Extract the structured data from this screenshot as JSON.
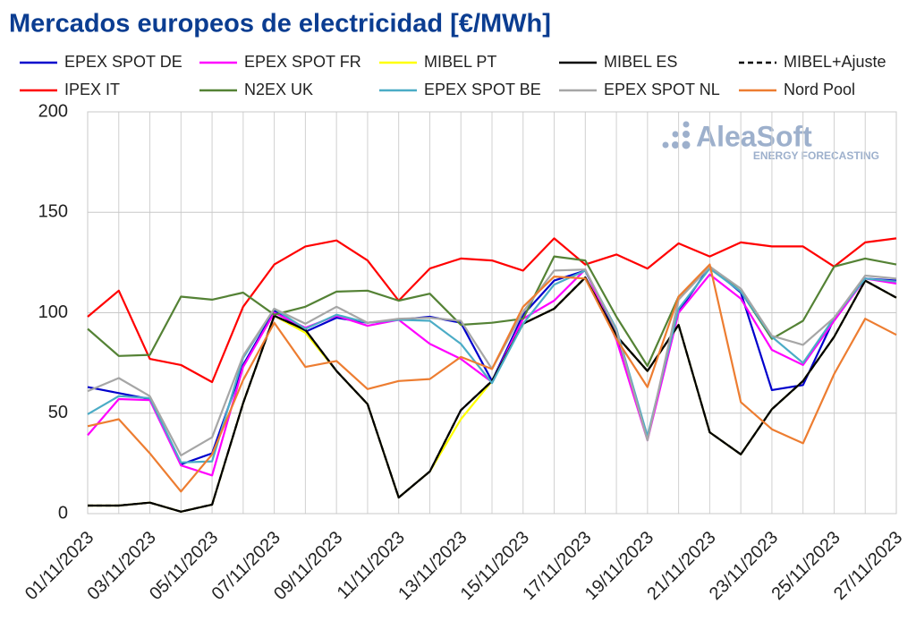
{
  "chart_data": {
    "type": "line",
    "title": "Mercados europeos de electricidad [€/MWh]",
    "watermark": {
      "name": "AleaSoft",
      "tagline": "ENERGY FORECASTING"
    },
    "categories": [
      "01/11/2023",
      null,
      "03/11/2023",
      null,
      "05/11/2023",
      null,
      "07/11/2023",
      null,
      "09/11/2023",
      null,
      "11/11/2023",
      null,
      "13/11/2023",
      null,
      "15/11/2023",
      null,
      "17/11/2023",
      null,
      "19/11/2023",
      null,
      "21/11/2023",
      null,
      "23/11/2023",
      null,
      "25/11/2023",
      null,
      "27/11/2023"
    ],
    "ylim": [
      0,
      200
    ],
    "yticks": [
      0,
      50,
      100,
      150,
      200
    ],
    "grid": true,
    "series": [
      {
        "name": "EPEX SPOT DE",
        "color": "#0000cc",
        "values": [
          63,
          60,
          57,
          24.5,
          30,
          74,
          101,
          90.5,
          97.5,
          95,
          96.5,
          98,
          95,
          66,
          99,
          116,
          121,
          89,
          37,
          100.5,
          123,
          110,
          61.5,
          64,
          97,
          117,
          116
        ]
      },
      {
        "name": "EPEX SPOT FR",
        "color": "#ff00ff",
        "values": [
          39,
          57,
          56.5,
          24,
          19,
          73,
          100,
          92.5,
          98.5,
          93.5,
          96.5,
          84.5,
          77,
          65.5,
          97,
          106,
          121.5,
          86.5,
          36.5,
          100,
          119,
          107,
          81.5,
          74,
          96,
          117,
          114.5
        ]
      },
      {
        "name": "MIBEL PT",
        "color": "#ffff00",
        "values": [
          4,
          4,
          5.5,
          1,
          4.5,
          55,
          98.5,
          90,
          71,
          54.5,
          8,
          21,
          47,
          66,
          94.5,
          102,
          117.5,
          88.5,
          71,
          94,
          40.5,
          29.5,
          52,
          66,
          88,
          116,
          107.5
        ]
      },
      {
        "name": "MIBEL ES",
        "color": "#000000",
        "values": [
          4,
          4,
          5.5,
          1,
          4.5,
          55,
          98.5,
          91.5,
          71,
          54.5,
          8,
          21,
          51.5,
          66,
          94.5,
          102,
          117.5,
          88.5,
          71,
          94,
          40.5,
          29.5,
          52,
          66,
          88,
          116,
          107.5
        ]
      },
      {
        "name": "MIBEL+Ajuste",
        "color": "#000000",
        "dashed": true,
        "values": [
          4,
          4,
          5.5,
          1,
          4.5,
          55,
          98.5,
          91.5,
          71,
          54.5,
          8,
          21,
          51.5,
          66,
          94.5,
          102,
          117.5,
          88.5,
          71,
          94,
          40.5,
          29.5,
          52,
          66,
          88,
          116,
          107.5
        ]
      },
      {
        "name": "IPEX IT",
        "color": "#ff0000",
        "values": [
          98,
          111,
          77,
          74,
          65.5,
          103,
          124,
          133,
          136,
          126,
          106,
          122,
          127,
          126,
          121,
          137,
          124,
          129,
          122,
          134.5,
          128,
          135,
          133,
          133,
          123,
          135,
          137
        ]
      },
      {
        "name": "N2EX UK",
        "color": "#548235",
        "values": [
          92,
          78.5,
          79,
          108,
          106.5,
          110,
          99,
          103,
          110.5,
          111,
          106,
          109.5,
          94,
          95,
          97,
          128,
          126,
          98,
          73.5,
          108,
          123,
          110.5,
          87,
          96,
          123,
          127,
          124
        ]
      },
      {
        "name": "EPEX SPOT BE",
        "color": "#4bacc6",
        "values": [
          49.5,
          58.5,
          57.5,
          25.5,
          26,
          77.5,
          102,
          92,
          99,
          95,
          96.5,
          96,
          84.5,
          65,
          94.5,
          114,
          121,
          92,
          38.5,
          102,
          122,
          110.5,
          88,
          75,
          97.5,
          117,
          115.5
        ]
      },
      {
        "name": "EPEX SPOT NL",
        "color": "#a6a6a6",
        "values": [
          61,
          67.5,
          58.5,
          29,
          38,
          78.5,
          102,
          94.5,
          103,
          95,
          97,
          97.5,
          96,
          72,
          100.5,
          121,
          121.5,
          91,
          36.5,
          106.5,
          123,
          112,
          88.5,
          84,
          97.5,
          118.5,
          117
        ]
      },
      {
        "name": "Nord Pool",
        "color": "#ed7d31",
        "values": [
          43.5,
          47,
          30,
          11,
          29.5,
          66.5,
          95,
          73,
          76,
          62,
          66,
          67,
          78,
          72,
          103,
          118,
          117,
          87,
          63,
          108,
          124,
          55.5,
          42,
          35,
          69.5,
          97,
          89
        ]
      }
    ]
  }
}
